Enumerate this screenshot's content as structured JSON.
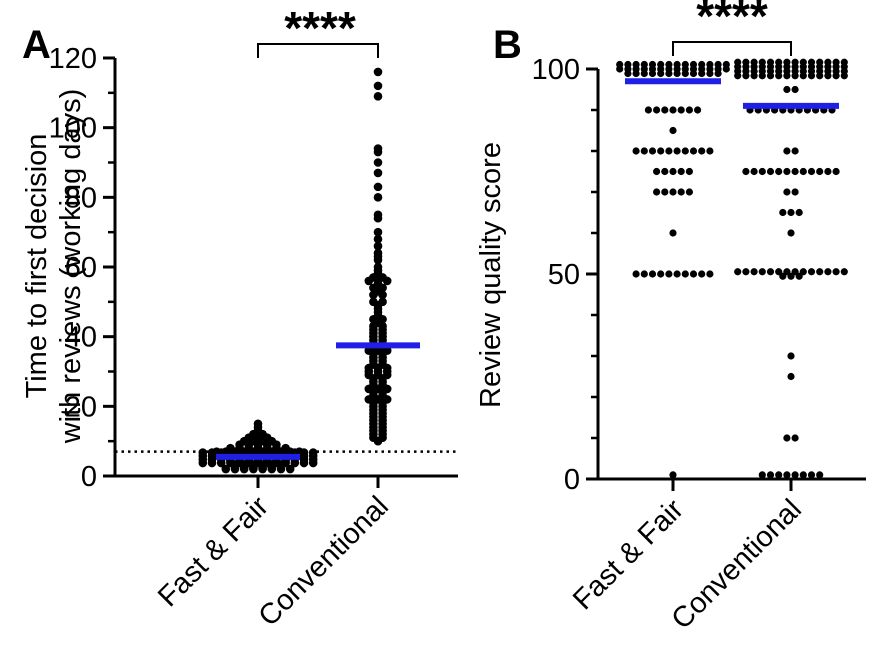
{
  "chart_data": [
    {
      "type": "scatter",
      "panel_label": "A",
      "ylabel_line1": "Time to first decision",
      "ylabel_line2": "with reviews (working days)",
      "categories": [
        "Fast & Fair",
        "Conventional"
      ],
      "ylim": [
        0,
        120
      ],
      "yticks": [
        0,
        20,
        40,
        60,
        80,
        100,
        120
      ],
      "reference_line": 7,
      "significance": "****",
      "means": [
        5.5,
        37.5
      ],
      "mean_color": "#1f1fe6",
      "point_color": "#000000",
      "series": [
        {
          "category": "Fast & Fair",
          "values": [
            15,
            14,
            13,
            12,
            12,
            11,
            11,
            11,
            10,
            10,
            10,
            10,
            9,
            9,
            9,
            9,
            9,
            8,
            8,
            8,
            8,
            8,
            8,
            8,
            7,
            7,
            7,
            7,
            7,
            7,
            7,
            7,
            7,
            7,
            6,
            6,
            6,
            6,
            6,
            6,
            6,
            6,
            6,
            6,
            6,
            6,
            6,
            6,
            6,
            6,
            5,
            5,
            5,
            5,
            5,
            5,
            5,
            5,
            5,
            5,
            5,
            5,
            5,
            5,
            5,
            5,
            5,
            5,
            5,
            5,
            4,
            4,
            4,
            4,
            4,
            4,
            4,
            4,
            4,
            4,
            4,
            4,
            4,
            4,
            4,
            4,
            4,
            4,
            4,
            3,
            3,
            3,
            3,
            3,
            3,
            3,
            3,
            3,
            3,
            3,
            3,
            3,
            3,
            3,
            3,
            3,
            2,
            2,
            2,
            2,
            2,
            2,
            2,
            2
          ]
        },
        {
          "category": "Conventional",
          "values": [
            116,
            112,
            109,
            94,
            93,
            90,
            87,
            83,
            80,
            75,
            74,
            70,
            68,
            66,
            64,
            63,
            62,
            60,
            59,
            58,
            57,
            57,
            56,
            56,
            56,
            55,
            54,
            54,
            53,
            52,
            52,
            50,
            50,
            49,
            48,
            47,
            46,
            45,
            45,
            44,
            43,
            43,
            42,
            42,
            41,
            41,
            40,
            40,
            39,
            39,
            38,
            38,
            37,
            37,
            36,
            36,
            36,
            35,
            35,
            34,
            34,
            33,
            33,
            32,
            32,
            31,
            31,
            31,
            30,
            30,
            30,
            29,
            29,
            29,
            28,
            28,
            27,
            27,
            26,
            26,
            25,
            25,
            25,
            24,
            24,
            23,
            23,
            22,
            22,
            22,
            21,
            21,
            20,
            20,
            19,
            19,
            18,
            18,
            17,
            17,
            16,
            16,
            15,
            15,
            14,
            14,
            13,
            13,
            12,
            12,
            11,
            11,
            10
          ]
        }
      ]
    },
    {
      "type": "scatter",
      "panel_label": "B",
      "ylabel": "Review quality score",
      "categories": [
        "Fast & Fair",
        "Conventional"
      ],
      "ylim": [
        0,
        100
      ],
      "yticks": [
        0,
        50,
        100
      ],
      "significance": "****",
      "means": [
        97,
        91
      ],
      "mean_color": "#1f1fe6",
      "point_color": "#000000",
      "series": [
        {
          "category": "Fast & Fair",
          "values": [
            100,
            100,
            100,
            100,
            100,
            100,
            100,
            100,
            100,
            100,
            100,
            100,
            100,
            100,
            100,
            100,
            100,
            100,
            100,
            100,
            100,
            100,
            100,
            100,
            100,
            100,
            100,
            100,
            100,
            100,
            100,
            100,
            100,
            100,
            100,
            100,
            100,
            100,
            100,
            100,
            90,
            90,
            90,
            90,
            90,
            90,
            90,
            85,
            80,
            80,
            80,
            80,
            80,
            80,
            80,
            80,
            80,
            80,
            75,
            75,
            75,
            75,
            75,
            70,
            70,
            70,
            70,
            70,
            60,
            50,
            50,
            50,
            50,
            50,
            50,
            50,
            50,
            50,
            50,
            1
          ]
        },
        {
          "category": "Conventional",
          "values": [
            100,
            100,
            100,
            100,
            100,
            100,
            100,
            100,
            100,
            100,
            100,
            100,
            100,
            100,
            100,
            100,
            100,
            100,
            100,
            100,
            100,
            100,
            100,
            100,
            100,
            100,
            100,
            100,
            100,
            100,
            100,
            100,
            100,
            100,
            100,
            100,
            100,
            100,
            100,
            100,
            100,
            100,
            100,
            100,
            100,
            100,
            100,
            100,
            100,
            100,
            100,
            100,
            100,
            100,
            100,
            100,
            95,
            95,
            90,
            90,
            90,
            90,
            90,
            90,
            90,
            90,
            90,
            90,
            90,
            80,
            80,
            75,
            75,
            75,
            75,
            75,
            75,
            75,
            75,
            75,
            75,
            75,
            75,
            70,
            70,
            65,
            65,
            65,
            60,
            50,
            50,
            50,
            50,
            50,
            50,
            50,
            50,
            50,
            50,
            50,
            50,
            50,
            50,
            50,
            50,
            50,
            30,
            25,
            10,
            10,
            1,
            1,
            1,
            1,
            1,
            1,
            1,
            1
          ]
        }
      ]
    }
  ]
}
